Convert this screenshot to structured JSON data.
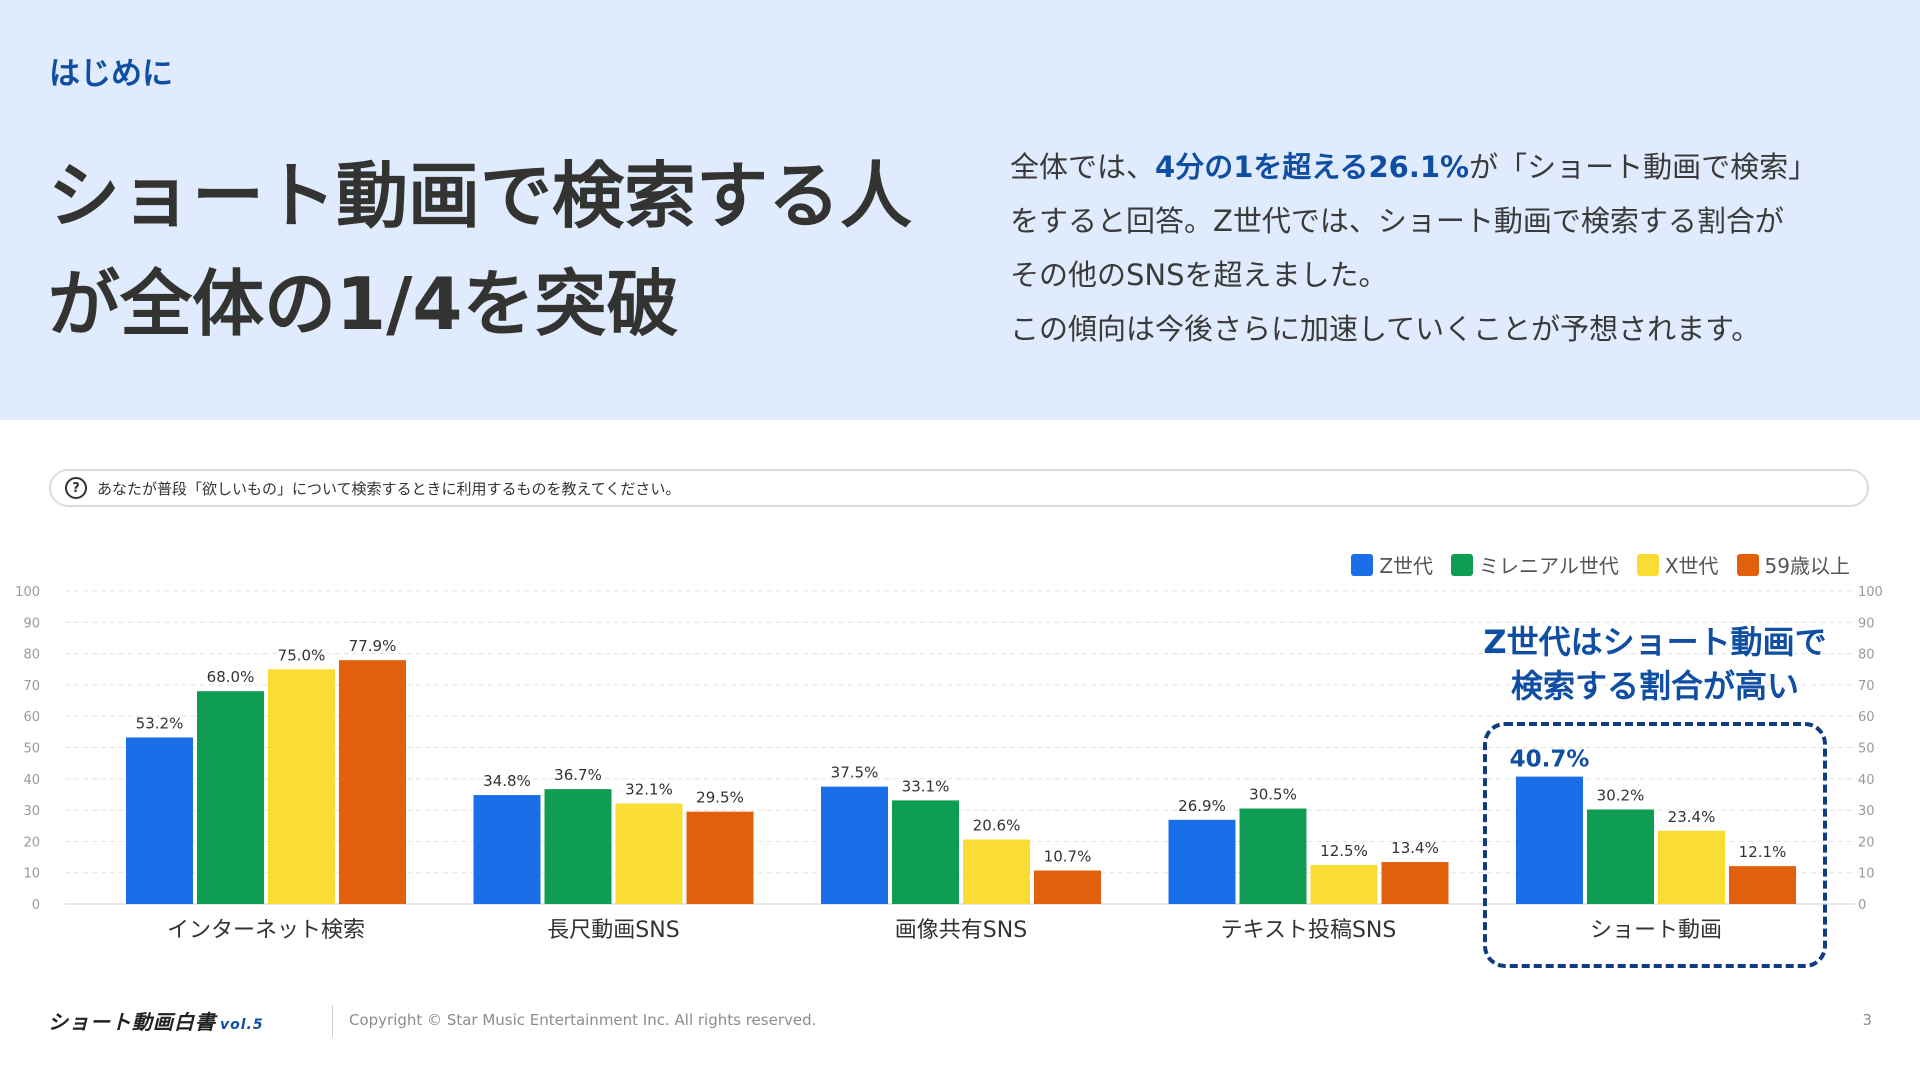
{
  "header": {
    "section_label": "はじめに",
    "headline_line1": "ショート動画で検索する人",
    "headline_line2": "が全体の1/4を突破",
    "desc_l1_pre": "全体では、",
    "desc_l1_hl": "4分の1を超える26.1%",
    "desc_l1_post": "が「ショート動画で検索」",
    "desc_l2": "をすると回答。Z世代では、ショート動画で検索する割合が",
    "desc_l3": "その他のSNSを超えました。",
    "desc_l4": "この傾向は今後さらに加速していくことが予想されます。"
  },
  "question": {
    "icon": "?",
    "text": "あなたが普段「欲しいもの」について検索するときに利用するものを教えてください。"
  },
  "callout": {
    "line1": "Z世代はショート動画で",
    "line2": "検索する割合が高い"
  },
  "footer": {
    "logo": "ショート動画白書",
    "logo_vol": "vol.5",
    "copyright": "Copyright © Star Music Entertainment Inc. All rights reserved.",
    "page": "3"
  },
  "colors": {
    "z": "#1a6ee8",
    "millennial": "#0f9d53",
    "x": "#f9dd35",
    "s59": "#e2600c",
    "accent": "#0f4ea3"
  },
  "chart_data": {
    "type": "bar",
    "categories": [
      "インターネット検索",
      "長尺動画SNS",
      "画像共有SNS",
      "テキスト投稿SNS",
      "ショート動画"
    ],
    "series": [
      {
        "name": "Z世代",
        "color": "#1a6ee8",
        "values": [
          53.2,
          34.8,
          37.5,
          26.9,
          40.7
        ]
      },
      {
        "name": "ミレニアル世代",
        "color": "#0f9d53",
        "values": [
          68.0,
          36.7,
          33.1,
          30.5,
          30.2
        ]
      },
      {
        "name": "X世代",
        "color": "#f9dd35",
        "values": [
          75.0,
          32.1,
          20.6,
          12.5,
          23.4
        ]
      },
      {
        "name": "59歳以上",
        "color": "#e2600c",
        "values": [
          77.9,
          29.5,
          10.7,
          13.4,
          12.1
        ]
      }
    ],
    "ylim": [
      0,
      100
    ],
    "yticks": [
      0,
      10,
      20,
      30,
      40,
      50,
      60,
      70,
      80,
      90,
      100
    ],
    "grid": true,
    "legend": "top-right",
    "highlight": {
      "category": "ショート動画",
      "series": "Z世代"
    }
  }
}
